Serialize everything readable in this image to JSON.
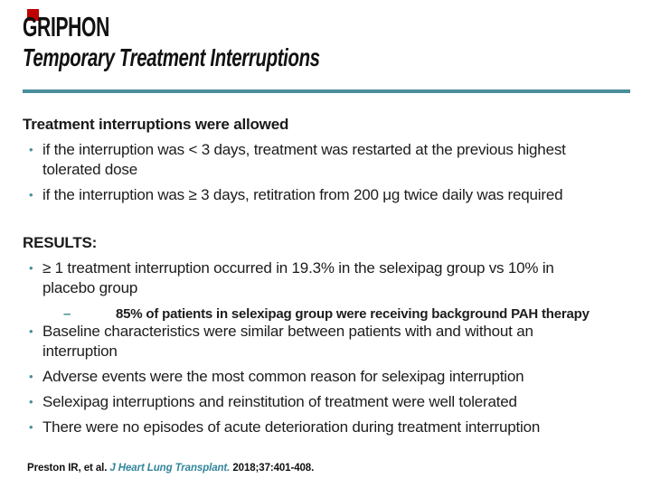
{
  "slide": {
    "title": "GRIPHON",
    "subtitle": "Temporary Treatment Interruptions",
    "colors": {
      "accent_teal": "#4a8e9b",
      "red_marker": "#c00000",
      "journal_teal": "#31859c",
      "text": "#1a1a1a"
    },
    "glyphs": {
      "bullet": "•",
      "sub_dash": "–"
    },
    "body": {
      "intro_heading": "Treatment interruptions were allowed",
      "intro_bullets": [
        "if the interruption was < 3 days, treatment was restarted at the previous highest tolerated dose",
        "if the interruption was ≥ 3 days, retitration from 200 μg twice daily was required"
      ],
      "results_heading": "RESULTS:",
      "results_bullet": "≥ 1 treatment interruption occurred in 19.3% in the selexipag group vs 10% in placebo group",
      "results_subbullet": "85% of patients in selexipag group were receiving background PAH therapy",
      "findings_bullets": [
        "Baseline characteristics were similar between patients with and without an interruption",
        "Adverse events were the most common reason for selexipag interruption",
        "Selexipag interruptions and reinstitution of treatment were well tolerated",
        "There were no episodes of acute deterioration during treatment interruption"
      ]
    },
    "footer": {
      "citation_authors": "Preston IR, et al. ",
      "citation_journal": "J Heart Lung Transplant. ",
      "citation_ref": "2018;37:401-408."
    }
  }
}
